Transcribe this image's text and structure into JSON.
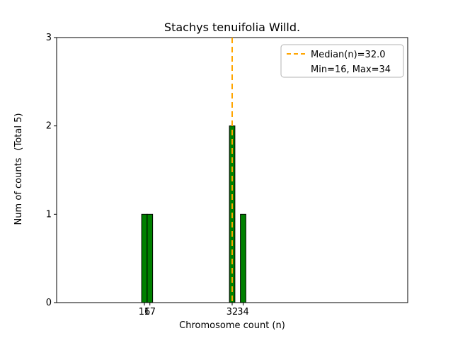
{
  "chart_data": {
    "type": "bar",
    "title": "Stachys tenuifolia Willd.",
    "xlabel": "Chromosome count (n)",
    "ylabel": "Num of counts",
    "ylabel_note": "(Total 5)",
    "x": [
      16,
      17,
      32,
      34
    ],
    "values": [
      1,
      1,
      2,
      1
    ],
    "bar_width": 1.0,
    "bar_color": "#008000",
    "bar_edge_color": "#000000",
    "xlim": [
      0,
      64
    ],
    "ylim": [
      0,
      3
    ],
    "xticks": [
      16,
      17,
      32,
      34
    ],
    "yticks": [
      0,
      1,
      2,
      3
    ],
    "median_line": {
      "x": 32.0,
      "color": "#ffa500",
      "style": "dashed"
    },
    "legend": {
      "position": "upper right",
      "items": [
        {
          "label": "Median(n)=32.0",
          "has_line_sample": true
        },
        {
          "label": "Min=16, Max=34",
          "has_line_sample": false
        }
      ]
    }
  }
}
